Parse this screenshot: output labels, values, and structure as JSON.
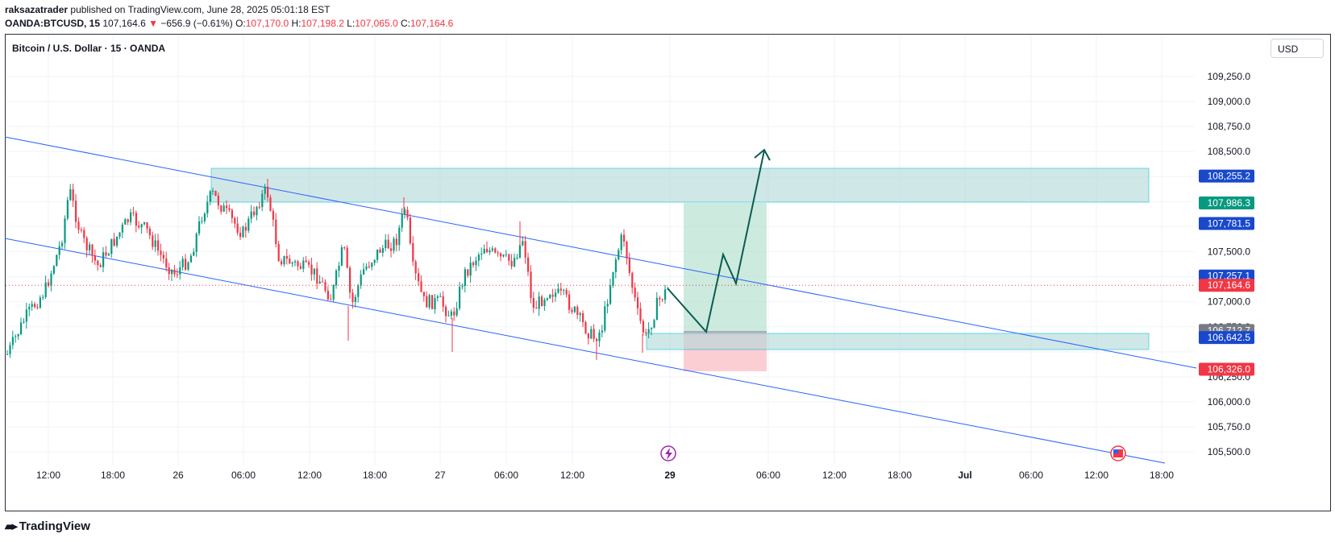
{
  "header": {
    "author": "raksazatrader",
    "published_text": "published on TradingView.com, June 28, 2025 05:01:18 EST",
    "symbol": "OANDA:BTCUSD, 15",
    "last_price": "107,164.6",
    "arrow": "▼",
    "change": "−656.9 (−0.61%)",
    "o_label": "O:",
    "o_value": "107,170.0",
    "h_label": "H:",
    "h_value": "107,198.2",
    "l_label": "L:",
    "l_value": "107,065.0",
    "c_label": "C:",
    "c_value": "107,164.6"
  },
  "chart_title": "Bitcoin / U.S. Dollar · 15 · OANDA",
  "currency_button": "USD",
  "footer_brand": "TradingView",
  "colors": {
    "up": "#089981",
    "down": "#f23645",
    "channel": "#2962ff",
    "zone_fill": "#b2d8d8",
    "zone_border": "#00bcd4",
    "arrow": "#0b5c4f",
    "target": "#b2dfce",
    "stop": "#fbc9cf"
  },
  "chart_data": {
    "type": "candlestick",
    "y_axis_labels": [
      "109,250.0",
      "109,000.0",
      "108,750.0",
      "108,500.0",
      "107,500.0",
      "107,000.0",
      "106,750.0",
      "106,250.0",
      "106,000.0",
      "105,750.0",
      "105,500.0"
    ],
    "x_axis_labels": [
      "12:00",
      "18:00",
      "26",
      "06:00",
      "12:00",
      "18:00",
      "27",
      "06:00",
      "12:00",
      "29",
      "06:00",
      "12:00",
      "18:00",
      "Jul",
      "06:00",
      "12:00",
      "18:00"
    ],
    "price_tags": [
      {
        "label": "108,255.2",
        "price": 108255.2,
        "color": "#1848cc"
      },
      {
        "label": "107,986.3",
        "price": 107986.3,
        "color": "#089981"
      },
      {
        "label": "107,781.5",
        "price": 107781.5,
        "color": "#1848cc"
      },
      {
        "label": "107,257.1",
        "price": 107257.1,
        "color": "#1848cc"
      },
      {
        "label": "107,164.6",
        "price": 107164.6,
        "color": "#f23645"
      },
      {
        "label": "106,712.7",
        "price": 106712.7,
        "color": "#787b86"
      },
      {
        "label": "106,642.5",
        "price": 106642.5,
        "color": "#1848cc"
      },
      {
        "label": "106,326.0",
        "price": 106326.0,
        "color": "#f23645"
      }
    ],
    "current_price": 107164.6,
    "y_range": [
      105400,
      109450
    ]
  }
}
